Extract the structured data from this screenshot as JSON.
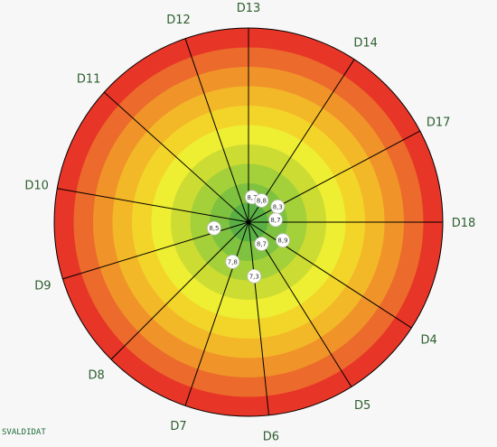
{
  "chart_data": {
    "type": "polar-target",
    "rings": {
      "count": 10,
      "colors_inner_to_outer": [
        "#5ab045",
        "#7fc23f",
        "#a4d03a",
        "#ccdc33",
        "#eeee33",
        "#f3d52a",
        "#f3b828",
        "#f0942a",
        "#ec6a2b",
        "#e73527"
      ]
    },
    "spokes": [
      {
        "label": "D13",
        "angle_deg": 90
      },
      {
        "label": "D14",
        "angle_deg": 57
      },
      {
        "label": "D17",
        "angle_deg": 28
      },
      {
        "label": "D18",
        "angle_deg": 0
      },
      {
        "label": "D4",
        "angle_deg": -33
      },
      {
        "label": "D5",
        "angle_deg": -58
      },
      {
        "label": "D6",
        "angle_deg": -84
      },
      {
        "label": "D7",
        "angle_deg": -109
      },
      {
        "label": "D8",
        "angle_deg": -135
      },
      {
        "label": "D9",
        "angle_deg": -163
      },
      {
        "label": "D10",
        "angle_deg": 170
      },
      {
        "label": "D11",
        "angle_deg": 138
      },
      {
        "label": "D12",
        "angle_deg": 109
      }
    ],
    "values": [
      {
        "label": "8,7",
        "angle_deg": 82,
        "r": 0.13
      },
      {
        "label": "8,8",
        "angle_deg": 59,
        "r": 0.13
      },
      {
        "label": "8,3",
        "angle_deg": 28,
        "r": 0.17
      },
      {
        "label": "8,7",
        "angle_deg": 5,
        "r": 0.14
      },
      {
        "label": "8,9",
        "angle_deg": -28,
        "r": 0.2
      },
      {
        "label": "8,7",
        "angle_deg": -59,
        "r": 0.13
      },
      {
        "label": "7,3",
        "angle_deg": -84,
        "r": 0.28
      },
      {
        "label": "7,8",
        "angle_deg": -112,
        "r": 0.22
      },
      {
        "label": "8,5",
        "angle_deg": -170,
        "r": 0.18
      }
    ],
    "colors": {
      "spoke_line": "#000000",
      "label_text": "#2c5e2e",
      "marker_fill": "#ffffff",
      "background": "#f7f7f7"
    }
  },
  "footer": {
    "text": "SVALDIDAT"
  }
}
